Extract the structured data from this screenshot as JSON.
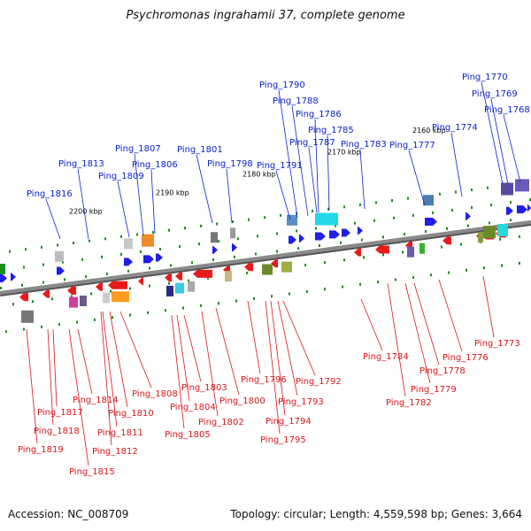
{
  "title": "Psychromonas ingrahamii 37, complete genome",
  "footer": {
    "accession": "Accession: NC_008709",
    "summary": "Topology: circular; Length: 4,559,598 bp; Genes: 3,664"
  },
  "colors": {
    "forward_strand": "#1f1fe6",
    "reverse_strand": "#e61c1c",
    "forward_label": "#0b22c9",
    "reverse_label": "#d4171b",
    "backbone": "#8a8a8a",
    "rna_tick": "#1f8a1f"
  },
  "scale_marks": [
    "2200 kbp",
    "2190 kbp",
    "2180 kbp",
    "2170 kbp",
    "2160 kbp"
  ],
  "forward_genes": [
    "Ping_1816",
    "Ping_1813",
    "Ping_1809",
    "Ping_1807",
    "Ping_1806",
    "Ping_1801",
    "Ping_1798",
    "Ping_1791",
    "Ping_1790",
    "Ping_1788",
    "Ping_1786",
    "Ping_1787",
    "Ping_1785",
    "Ping_1783",
    "Ping_1777",
    "Ping_1774",
    "Ping_1770",
    "Ping_1769",
    "Ping_1768"
  ],
  "reverse_genes": [
    "Ping_1819",
    "Ping_1818",
    "Ping_1817",
    "Ping_1815",
    "Ping_1814",
    "Ping_1812",
    "Ping_1811",
    "Ping_1810",
    "Ping_1808",
    "Ping_1805",
    "Ping_1804",
    "Ping_1803",
    "Ping_1802",
    "Ping_1800",
    "Ping_1796",
    "Ping_1795",
    "Ping_1794",
    "Ping_1793",
    "Ping_1792",
    "Ping_1784",
    "Ping_1782",
    "Ping_1779",
    "Ping_1778",
    "Ping_1776",
    "Ping_1773"
  ]
}
